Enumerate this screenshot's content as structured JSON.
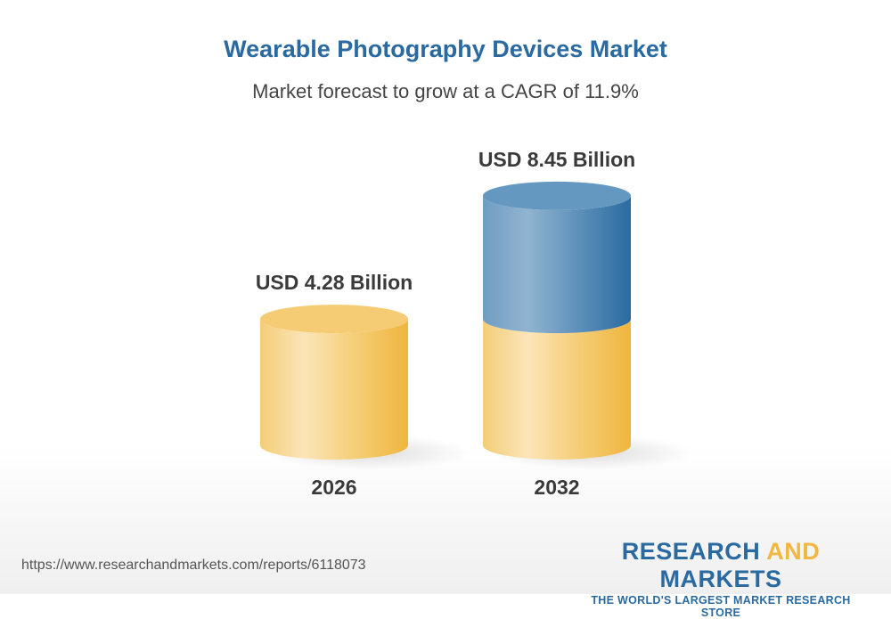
{
  "chart_data": {
    "type": "bar",
    "style": "3d-cylinder",
    "title": "Wearable Photography Devices Market",
    "subtitle": "Market forecast to grow at a CAGR of 11.9%",
    "categories": [
      "2026",
      "2032"
    ],
    "values": [
      4.28,
      8.45
    ],
    "data_labels": [
      "USD 4.28 Billion",
      "USD 8.45 Billion"
    ],
    "unit": "USD Billion",
    "colors": {
      "base": "#f0b840",
      "growth": "#2a6aa0"
    }
  },
  "footer": {
    "url": "https://www.researchandmarkets.com/reports/6118073",
    "logo_part1": "RESEARCH ",
    "logo_part2": "AND",
    "logo_part3": " MARKETS",
    "tagline": "THE WORLD'S LARGEST MARKET RESEARCH STORE"
  }
}
